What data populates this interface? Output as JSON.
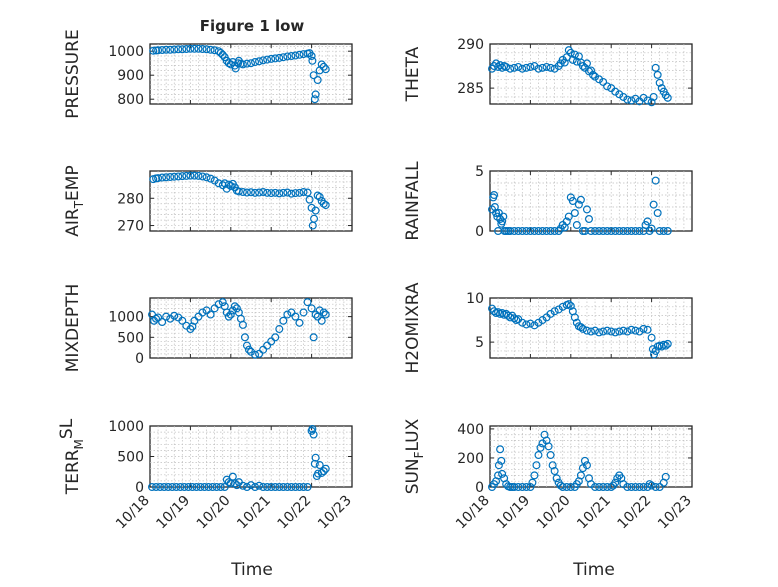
{
  "figure_title": "Figure 1 low",
  "x_axis_title": "Time",
  "marker_color": "#0072bd",
  "chart_data": [
    {
      "type": "scatter",
      "ylabel": "PRESSURE",
      "ylabel_sub": "",
      "ylabel_rest": "",
      "ylabel_mode": "",
      "ylim": [
        780,
        1030
      ],
      "yticks": [
        800,
        900,
        1000
      ],
      "xlim": [
        0,
        5
      ],
      "xtick_labels": [],
      "x": [
        0.08,
        0.15,
        0.2,
        0.3,
        0.4,
        0.5,
        0.6,
        0.7,
        0.8,
        0.9,
        1.0,
        1.1,
        1.2,
        1.3,
        1.4,
        1.5,
        1.6,
        1.7,
        1.75,
        1.8,
        1.85,
        1.9,
        1.95,
        2.0,
        2.05,
        2.1,
        2.12,
        2.18,
        2.2,
        2.25,
        2.3,
        2.4,
        2.5,
        2.6,
        2.7,
        2.8,
        2.9,
        3.0,
        3.1,
        3.2,
        3.3,
        3.4,
        3.5,
        3.6,
        3.7,
        3.8,
        3.9,
        3.95,
        4.0,
        4.02,
        4.05,
        4.08,
        4.1,
        4.15,
        4.2,
        4.25,
        4.3,
        4.35
      ],
      "y": [
        1002,
        1003,
        1004,
        1005,
        1006,
        1006,
        1007,
        1008,
        1008,
        1009,
        1010,
        1010,
        1010,
        1009,
        1008,
        1006,
        1004,
        1000,
        993,
        985,
        975,
        960,
        950,
        945,
        955,
        940,
        928,
        950,
        960,
        948,
        945,
        948,
        950,
        955,
        958,
        962,
        965,
        968,
        970,
        972,
        975,
        978,
        980,
        982,
        985,
        988,
        990,
        992,
        980,
        960,
        900,
        800,
        820,
        880,
        920,
        945,
        935,
        925
      ]
    },
    {
      "type": "scatter",
      "ylabel": "THETA",
      "ylabel_sub": "",
      "ylabel_rest": "",
      "ylabel_mode": "",
      "ylim": [
        283.2,
        290
      ],
      "yticks": [
        285,
        290
      ],
      "xlim": [
        0,
        5
      ],
      "xtick_labels": [],
      "x": [
        0.05,
        0.1,
        0.15,
        0.2,
        0.25,
        0.3,
        0.35,
        0.4,
        0.5,
        0.6,
        0.7,
        0.8,
        0.9,
        1.0,
        1.1,
        1.2,
        1.3,
        1.4,
        1.5,
        1.6,
        1.7,
        1.75,
        1.8,
        1.85,
        1.9,
        1.95,
        2.0,
        2.05,
        2.1,
        2.15,
        2.2,
        2.25,
        2.3,
        2.35,
        2.4,
        2.45,
        2.5,
        2.55,
        2.6,
        2.7,
        2.8,
        2.9,
        3.0,
        3.1,
        3.2,
        3.3,
        3.4,
        3.5,
        3.6,
        3.7,
        3.8,
        3.9,
        4.0,
        4.05,
        4.1,
        4.15,
        4.2,
        4.25,
        4.3,
        4.35,
        4.4
      ],
      "y": [
        287.2,
        287.5,
        287.8,
        287.4,
        287.6,
        287.3,
        287.5,
        287.4,
        287.2,
        287.3,
        287.4,
        287.2,
        287.3,
        287.4,
        287.5,
        287.2,
        287.3,
        287.4,
        287.3,
        287.2,
        287.5,
        287.8,
        288.2,
        287.9,
        288.5,
        289.3,
        289.0,
        288.2,
        288.8,
        288.0,
        288.6,
        287.9,
        287.5,
        287.3,
        287.8,
        286.9,
        287.0,
        286.5,
        286.3,
        286.0,
        285.7,
        285.2,
        285.0,
        284.6,
        284.3,
        284.0,
        283.7,
        283.6,
        283.8,
        283.5,
        283.9,
        283.6,
        283.4,
        284.0,
        287.3,
        286.5,
        285.6,
        285.0,
        284.6,
        284.2,
        283.9
      ]
    },
    {
      "type": "scatter",
      "ylabel": "AIR",
      "ylabel_sub": "T",
      "ylabel_rest": "EMP",
      "ylabel_mode": "sub",
      "ylim": [
        268,
        290
      ],
      "yticks": [
        270,
        280
      ],
      "xlim": [
        0,
        5
      ],
      "xtick_labels": [],
      "x": [
        0.08,
        0.15,
        0.2,
        0.3,
        0.4,
        0.5,
        0.6,
        0.7,
        0.8,
        0.9,
        1.0,
        1.1,
        1.2,
        1.3,
        1.4,
        1.5,
        1.6,
        1.7,
        1.8,
        1.85,
        1.9,
        1.95,
        2.0,
        2.05,
        2.1,
        2.15,
        2.2,
        2.3,
        2.4,
        2.5,
        2.6,
        2.7,
        2.8,
        2.9,
        3.0,
        3.1,
        3.2,
        3.3,
        3.4,
        3.5,
        3.6,
        3.7,
        3.8,
        3.9,
        3.95,
        4.0,
        4.03,
        4.06,
        4.1,
        4.15,
        4.2,
        4.25,
        4.3,
        4.35
      ],
      "y": [
        287.0,
        287.3,
        287.4,
        287.6,
        287.7,
        287.8,
        287.9,
        288.0,
        288.1,
        288.2,
        288.3,
        288.3,
        288.2,
        288.0,
        287.7,
        287.2,
        286.5,
        285.5,
        284.8,
        285.5,
        283.5,
        285.0,
        284.5,
        285.3,
        284.0,
        282.8,
        282.5,
        282.3,
        282.1,
        282.2,
        282.0,
        282.1,
        282.3,
        282.0,
        281.9,
        282.0,
        281.8,
        282.0,
        282.1,
        281.7,
        281.9,
        282.0,
        282.3,
        282.1,
        279.5,
        276.5,
        270.0,
        272.5,
        275.5,
        281.0,
        280.5,
        279.0,
        278.0,
        277.5
      ]
    },
    {
      "type": "scatter",
      "ylabel": "RAINFALL",
      "ylabel_sub": "",
      "ylabel_rest": "",
      "ylabel_mode": "",
      "ylim": [
        0,
        5
      ],
      "yticks": [
        0,
        5
      ],
      "xlim": [
        0,
        5
      ],
      "xtick_labels": [],
      "x": [
        0.05,
        0.08,
        0.1,
        0.12,
        0.15,
        0.18,
        0.2,
        0.22,
        0.25,
        0.28,
        0.3,
        0.33,
        0.36,
        0.4,
        0.45,
        0.5,
        0.6,
        0.7,
        0.8,
        0.9,
        1.0,
        1.1,
        1.2,
        1.3,
        1.4,
        1.5,
        1.6,
        1.7,
        1.75,
        1.8,
        1.85,
        1.9,
        1.95,
        2.0,
        2.05,
        2.1,
        2.15,
        2.2,
        2.25,
        2.3,
        2.35,
        2.4,
        2.45,
        2.5,
        2.6,
        2.7,
        2.8,
        2.9,
        3.0,
        3.1,
        3.2,
        3.3,
        3.4,
        3.5,
        3.6,
        3.7,
        3.8,
        3.85,
        3.9,
        3.95,
        4.0,
        4.05,
        4.1,
        4.15,
        4.2,
        4.3,
        4.4
      ],
      "y": [
        1.8,
        2.8,
        3.0,
        2.0,
        1.5,
        1.2,
        0.0,
        1.5,
        1.0,
        0.6,
        0.8,
        1.2,
        0.0,
        0.0,
        0.0,
        0.0,
        0.0,
        0.0,
        0.0,
        0.0,
        0.0,
        0.0,
        0.0,
        0.0,
        0.0,
        0.0,
        0.0,
        0.0,
        0.2,
        0.5,
        0.3,
        0.8,
        1.2,
        2.8,
        2.5,
        1.5,
        0.5,
        2.2,
        2.6,
        0.0,
        0.0,
        1.8,
        1.0,
        0.0,
        0.0,
        0.0,
        0.0,
        0.0,
        0.0,
        0.0,
        0.0,
        0.0,
        0.0,
        0.0,
        0.0,
        0.0,
        0.0,
        0.5,
        0.8,
        0.0,
        0.2,
        2.2,
        4.2,
        1.5,
        0.0,
        0.0,
        0.0
      ]
    },
    {
      "type": "scatter",
      "ylabel": "MIXDEPTH",
      "ylabel_sub": "",
      "ylabel_rest": "",
      "ylabel_mode": "",
      "ylim": [
        0,
        1450
      ],
      "yticks": [
        0,
        500,
        1000
      ],
      "xlim": [
        0,
        5
      ],
      "xtick_labels": [],
      "x": [
        0.05,
        0.1,
        0.15,
        0.2,
        0.3,
        0.4,
        0.5,
        0.6,
        0.7,
        0.8,
        0.9,
        1.0,
        1.05,
        1.1,
        1.2,
        1.3,
        1.4,
        1.5,
        1.6,
        1.7,
        1.8,
        1.85,
        1.9,
        1.95,
        2.0,
        2.05,
        2.1,
        2.15,
        2.2,
        2.25,
        2.3,
        2.35,
        2.4,
        2.45,
        2.5,
        2.6,
        2.7,
        2.8,
        2.9,
        3.0,
        3.1,
        3.2,
        3.3,
        3.4,
        3.5,
        3.6,
        3.7,
        3.8,
        3.9,
        4.0,
        4.05,
        4.1,
        4.15,
        4.2,
        4.25,
        4.3,
        4.35
      ],
      "y": [
        1050,
        900,
        950,
        980,
        870,
        1000,
        950,
        1020,
        980,
        900,
        780,
        700,
        760,
        900,
        1000,
        1100,
        1150,
        1050,
        1200,
        1300,
        1350,
        1250,
        1100,
        1000,
        1050,
        1150,
        1250,
        1200,
        1100,
        950,
        800,
        500,
        300,
        200,
        150,
        80,
        100,
        200,
        300,
        400,
        500,
        700,
        900,
        1050,
        1100,
        1000,
        850,
        1100,
        1350,
        1200,
        500,
        1050,
        1000,
        1150,
        900,
        1100,
        1050
      ]
    },
    {
      "type": "scatter",
      "ylabel": "H2OMIXRA",
      "ylabel_sub": "",
      "ylabel_rest": "",
      "ylabel_mode": "",
      "ylim": [
        3.2,
        10
      ],
      "yticks": [
        5,
        10
      ],
      "xlim": [
        0,
        5
      ],
      "xtick_labels": [],
      "x": [
        0.05,
        0.1,
        0.15,
        0.2,
        0.25,
        0.3,
        0.35,
        0.4,
        0.45,
        0.5,
        0.55,
        0.6,
        0.65,
        0.7,
        0.8,
        0.9,
        1.0,
        1.1,
        1.2,
        1.3,
        1.4,
        1.5,
        1.6,
        1.7,
        1.8,
        1.9,
        1.95,
        2.0,
        2.05,
        2.1,
        2.15,
        2.2,
        2.25,
        2.3,
        2.4,
        2.5,
        2.6,
        2.7,
        2.8,
        2.9,
        3.0,
        3.1,
        3.2,
        3.3,
        3.4,
        3.5,
        3.6,
        3.7,
        3.8,
        3.9,
        4.0,
        4.03,
        4.06,
        4.1,
        4.15,
        4.2,
        4.25,
        4.3,
        4.35,
        4.4
      ],
      "y": [
        8.8,
        8.5,
        8.3,
        8.4,
        8.2,
        8.3,
        8.1,
        8.2,
        8.0,
        7.8,
        8.0,
        7.7,
        7.5,
        7.6,
        7.2,
        7.0,
        7.1,
        6.9,
        7.2,
        7.5,
        7.8,
        8.2,
        8.5,
        8.7,
        9.0,
        9.2,
        9.3,
        9.1,
        8.5,
        7.8,
        7.2,
        6.8,
        6.7,
        6.5,
        6.3,
        6.2,
        6.3,
        6.1,
        6.2,
        6.3,
        6.2,
        6.1,
        6.2,
        6.3,
        6.2,
        6.4,
        6.3,
        6.2,
        6.5,
        6.4,
        5.5,
        4.2,
        3.6,
        4.0,
        4.5,
        4.6,
        4.5,
        4.7,
        4.6,
        4.8
      ]
    },
    {
      "type": "scatter",
      "ylabel": "TERR",
      "ylabel_sub": "M",
      "ylabel_rest": "SL",
      "ylabel_mode": "subsup",
      "ylim": [
        0,
        1000
      ],
      "yticks": [
        0,
        500,
        1000
      ],
      "xlim": [
        0,
        5
      ],
      "xtick_labels": [
        "10/18",
        "10/19",
        "10/20",
        "10/21",
        "10/22",
        "10/23"
      ],
      "x": [
        0.05,
        0.15,
        0.25,
        0.35,
        0.45,
        0.55,
        0.65,
        0.75,
        0.85,
        0.95,
        1.05,
        1.15,
        1.25,
        1.35,
        1.45,
        1.55,
        1.65,
        1.75,
        1.85,
        1.9,
        1.95,
        2.0,
        2.05,
        2.1,
        2.15,
        2.2,
        2.3,
        2.4,
        2.5,
        2.6,
        2.7,
        2.8,
        2.9,
        3.0,
        3.1,
        3.2,
        3.3,
        3.4,
        3.5,
        3.6,
        3.7,
        3.8,
        3.9,
        4.0,
        4.02,
        4.05,
        4.08,
        4.1,
        4.13,
        4.16,
        4.2,
        4.25,
        4.3,
        4.35
      ],
      "y": [
        0,
        0,
        0,
        0,
        0,
        0,
        0,
        0,
        0,
        0,
        0,
        0,
        0,
        0,
        0,
        0,
        0,
        0,
        0,
        120,
        80,
        60,
        170,
        60,
        30,
        80,
        20,
        0,
        30,
        0,
        20,
        0,
        0,
        0,
        0,
        0,
        0,
        0,
        0,
        0,
        0,
        0,
        0,
        920,
        950,
        860,
        380,
        480,
        180,
        220,
        360,
        230,
        260,
        300
      ]
    },
    {
      "type": "scatter",
      "ylabel": "SUN",
      "ylabel_sub": "F",
      "ylabel_rest": "LUX",
      "ylabel_mode": "sub",
      "ylim": [
        0,
        420
      ],
      "yticks": [
        0,
        200,
        400
      ],
      "xlim": [
        0,
        5
      ],
      "xtick_labels": [
        "10/18",
        "10/19",
        "10/20",
        "10/21",
        "10/22",
        "10/23"
      ],
      "x": [
        0.05,
        0.1,
        0.15,
        0.2,
        0.22,
        0.25,
        0.28,
        0.3,
        0.35,
        0.4,
        0.45,
        0.5,
        0.55,
        0.6,
        0.7,
        0.8,
        0.9,
        1.0,
        1.05,
        1.1,
        1.15,
        1.2,
        1.25,
        1.3,
        1.35,
        1.4,
        1.45,
        1.5,
        1.55,
        1.6,
        1.65,
        1.7,
        1.75,
        1.8,
        1.9,
        2.0,
        2.1,
        2.15,
        2.2,
        2.25,
        2.3,
        2.35,
        2.4,
        2.45,
        2.5,
        2.6,
        2.7,
        2.8,
        2.9,
        3.0,
        3.05,
        3.1,
        3.15,
        3.2,
        3.25,
        3.3,
        3.4,
        3.5,
        3.6,
        3.7,
        3.8,
        3.9,
        3.95,
        4.0,
        4.1,
        4.2,
        4.3,
        4.35
      ],
      "y": [
        0,
        20,
        40,
        80,
        150,
        260,
        180,
        90,
        60,
        20,
        5,
        0,
        0,
        0,
        0,
        0,
        0,
        0,
        30,
        80,
        150,
        220,
        270,
        300,
        360,
        320,
        280,
        220,
        150,
        110,
        60,
        30,
        10,
        0,
        0,
        0,
        0,
        20,
        40,
        80,
        130,
        180,
        150,
        60,
        20,
        0,
        0,
        0,
        0,
        0,
        10,
        30,
        60,
        80,
        60,
        20,
        0,
        0,
        0,
        0,
        0,
        0,
        20,
        10,
        0,
        0,
        30,
        70
      ]
    }
  ]
}
